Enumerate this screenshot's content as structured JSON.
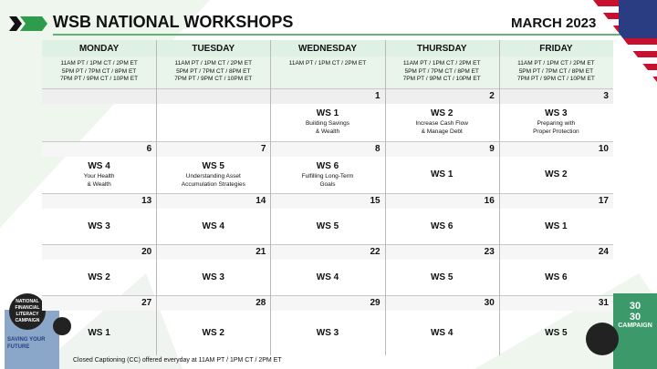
{
  "header": {
    "title": "WSB NATIONAL WORKSHOPS",
    "month": "MARCH 2023"
  },
  "days": [
    "MONDAY",
    "TUESDAY",
    "WEDNESDAY",
    "THURSDAY",
    "FRIDAY"
  ],
  "times": [
    [
      "11AM PT / 1PM CT / 2PM ET",
      "5PM PT / 7PM CT / 8PM ET",
      "7PM PT / 9PM CT / 10PM ET"
    ],
    [
      "11AM PT / 1PM CT / 2PM ET",
      "5PM PT / 7PM CT / 8PM ET",
      "7PM PT / 9PM CT / 10PM ET"
    ],
    [
      "11AM PT / 1PM CT / 2PM ET"
    ],
    [
      "11AM PT / 1PM CT / 2PM ET",
      "5PM PT / 7PM CT / 8PM ET",
      "7PM PT / 9PM CT / 10PM ET"
    ],
    [
      "11AM PT / 1PM CT / 2PM ET",
      "5PM PT / 7PM CT / 8PM ET",
      "7PM PT / 9PM CT / 10PM ET"
    ]
  ],
  "weeks": [
    [
      {
        "date": "1",
        "ws": "WS 1",
        "desc": [
          "Building Savings",
          "& Wealth"
        ]
      },
      {
        "date": "2",
        "ws": "WS 2",
        "desc": [
          "Increase Cash Flow",
          "& Manage Debt"
        ]
      },
      {
        "date": "3",
        "ws": "WS 3",
        "desc": [
          "Preparing with",
          "Proper Protection"
        ]
      }
    ],
    [
      {
        "date": "6",
        "ws": "WS 4",
        "desc": [
          "Your Health",
          "& Wealth"
        ]
      },
      {
        "date": "7",
        "ws": "WS 5",
        "desc": [
          "Understanding Asset",
          "Accumulation Strategies"
        ]
      },
      {
        "date": "8",
        "ws": "WS 6",
        "desc": [
          "Fulfilling Long-Term",
          "Goals"
        ]
      },
      {
        "date": "9",
        "ws": "WS 1"
      },
      {
        "date": "10",
        "ws": "WS 2"
      }
    ],
    [
      {
        "date": "13",
        "ws": "WS 3"
      },
      {
        "date": "14",
        "ws": "WS 4"
      },
      {
        "date": "15",
        "ws": "WS 5"
      },
      {
        "date": "16",
        "ws": "WS 6"
      },
      {
        "date": "17",
        "ws": "WS 1"
      }
    ],
    [
      {
        "date": "20",
        "ws": "WS 2"
      },
      {
        "date": "21",
        "ws": "WS 3"
      },
      {
        "date": "22",
        "ws": "WS 4"
      },
      {
        "date": "23",
        "ws": "WS 5"
      },
      {
        "date": "24",
        "ws": "WS 6"
      }
    ],
    [
      {
        "date": "27",
        "ws": "WS 1"
      },
      {
        "date": "28",
        "ws": "WS 2"
      },
      {
        "date": "29",
        "ws": "WS 3"
      },
      {
        "date": "30",
        "ws": "WS 4"
      },
      {
        "date": "31",
        "ws": "WS 5"
      }
    ]
  ],
  "footer": "Closed Captioning (CC) offered everyday at 11AM PT / 1PM CT / 2PM ET",
  "badges": {
    "left": [
      "NATIONAL",
      "FINANCIAL",
      "LITERACY",
      "CAMPAIGN"
    ],
    "book": [
      "SAVING YOUR",
      "FUTURE"
    ],
    "right": [
      "30",
      "30",
      "CAMPAIGN"
    ]
  }
}
